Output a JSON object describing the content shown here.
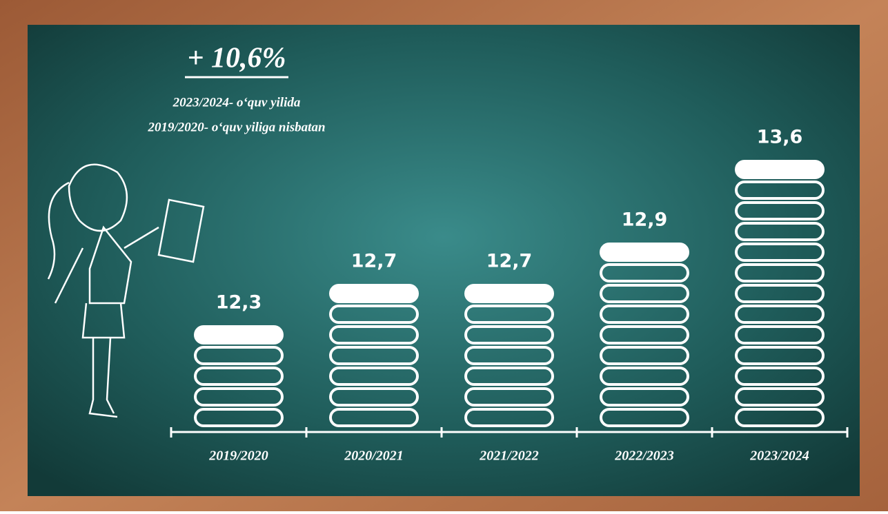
{
  "chart_data": {
    "type": "bar",
    "annotation": "+ 10,6%",
    "subtitle": [
      "2023/2024- o‘quv yilida",
      "2019/2020- o‘quv yiliga nisbatan"
    ],
    "categories": [
      "2019/2020",
      "2020/2021",
      "2021/2022",
      "2022/2023",
      "2023/2024"
    ],
    "values": [
      12.3,
      12.7,
      12.7,
      12.9,
      13.6
    ],
    "value_labels": [
      "12,3",
      "12,7",
      "12,7",
      "12,9",
      "13,6"
    ],
    "color": "#ffffff",
    "ylim": [
      11.5,
      13.6
    ]
  }
}
